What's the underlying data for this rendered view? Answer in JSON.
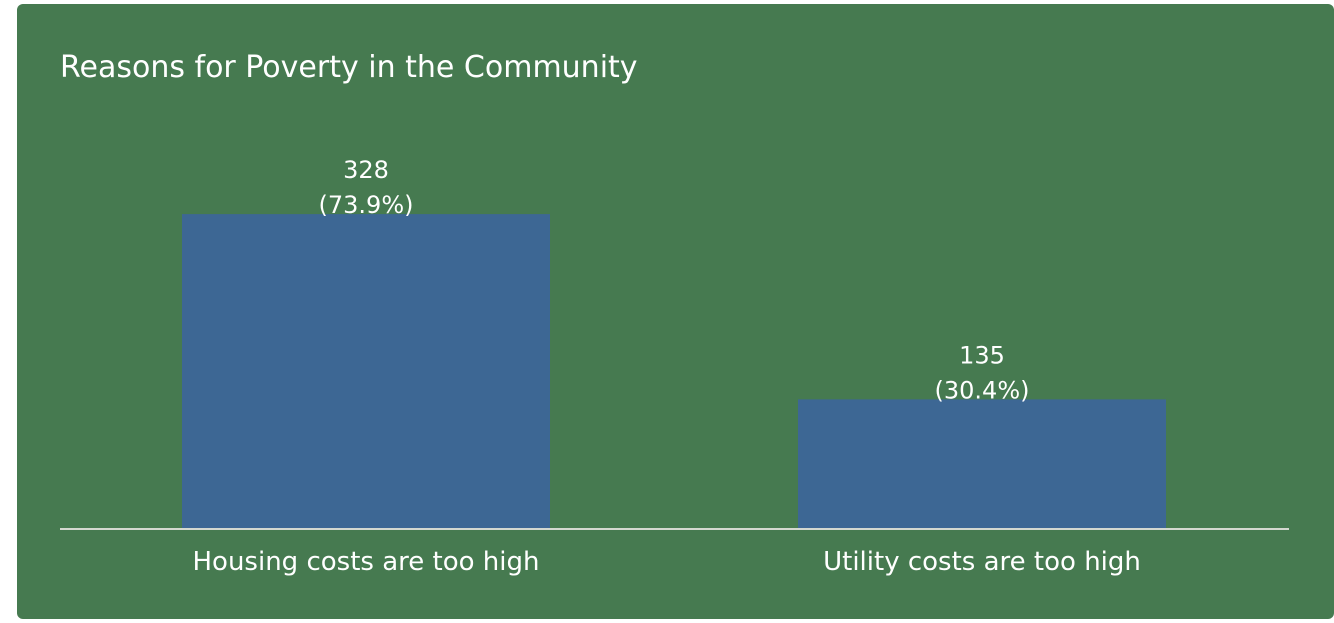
{
  "colors": {
    "background": "#467a50",
    "bar": "#3d6794",
    "baseline": "#d4d8d0",
    "text": "#ffffff"
  },
  "chart_data": {
    "type": "bar",
    "title": "Reasons for Poverty in the Community",
    "xlabel": "",
    "ylabel": "",
    "categories": [
      "Housing costs are too high",
      "Utility costs are too high"
    ],
    "values": [
      328,
      135
    ],
    "value_labels": [
      "328",
      "135"
    ],
    "percent_labels": [
      "(73.9%)",
      "(30.4%)"
    ],
    "ylim": [
      0,
      444
    ],
    "grid": false,
    "legend": "none"
  }
}
